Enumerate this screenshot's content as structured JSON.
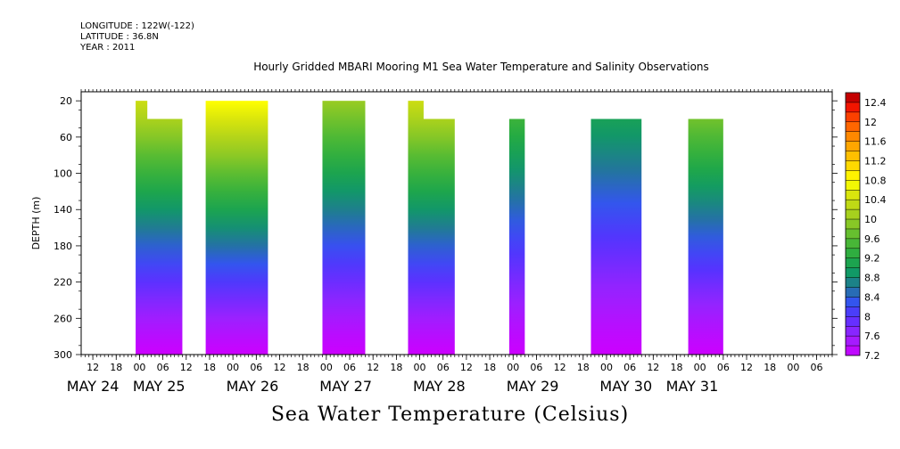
{
  "header": {
    "longitude": "LONGITUDE : 122W(-122)",
    "latitude": "LATITUDE : 36.8N",
    "year": "YEAR : 2011"
  },
  "title": "Hourly Gridded MBARI Mooring M1 Sea Water Temperature and Salinity Observations",
  "bottom_label": "Sea Water Temperature (Celsius)",
  "chart_data": {
    "type": "heatmap",
    "ylabel": "DEPTH (m)",
    "yticks": [
      20,
      60,
      100,
      140,
      180,
      220,
      260,
      300
    ],
    "ylim": [
      300,
      10
    ],
    "x_hour_ticks": [
      {
        "h": 12,
        "label": "12"
      },
      {
        "h": 18,
        "label": "18"
      },
      {
        "h": 24,
        "label": "00"
      },
      {
        "h": 30,
        "label": "06"
      },
      {
        "h": 36,
        "label": "12"
      },
      {
        "h": 42,
        "label": "18"
      },
      {
        "h": 48,
        "label": "00"
      },
      {
        "h": 54,
        "label": "06"
      },
      {
        "h": 60,
        "label": "12"
      },
      {
        "h": 66,
        "label": "18"
      },
      {
        "h": 72,
        "label": "00"
      },
      {
        "h": 78,
        "label": "06"
      },
      {
        "h": 84,
        "label": "12"
      },
      {
        "h": 90,
        "label": "18"
      },
      {
        "h": 96,
        "label": "00"
      },
      {
        "h": 102,
        "label": "06"
      },
      {
        "h": 108,
        "label": "12"
      },
      {
        "h": 114,
        "label": "18"
      },
      {
        "h": 120,
        "label": "00"
      },
      {
        "h": 126,
        "label": "06"
      },
      {
        "h": 132,
        "label": "12"
      },
      {
        "h": 138,
        "label": "18"
      },
      {
        "h": 144,
        "label": "00"
      },
      {
        "h": 150,
        "label": "06"
      },
      {
        "h": 156,
        "label": "12"
      },
      {
        "h": 162,
        "label": "18"
      },
      {
        "h": 168,
        "label": "00"
      },
      {
        "h": 174,
        "label": "06"
      },
      {
        "h": 180,
        "label": "12"
      },
      {
        "h": 186,
        "label": "18"
      },
      {
        "h": 192,
        "label": "00"
      },
      {
        "h": 198,
        "label": "06"
      }
    ],
    "date_labels": [
      {
        "h": 12,
        "label": "MAY 24"
      },
      {
        "h": 29,
        "label": "MAY 25"
      },
      {
        "h": 53,
        "label": "MAY 26"
      },
      {
        "h": 77,
        "label": "MAY 27"
      },
      {
        "h": 101,
        "label": "MAY 28"
      },
      {
        "h": 125,
        "label": "MAY 29"
      },
      {
        "h": 149,
        "label": "MAY 30"
      },
      {
        "h": 166,
        "label": "MAY 31"
      }
    ],
    "xlim": [
      9,
      202
    ],
    "data_blocks": [
      {
        "x_start": 23,
        "x_end": 35,
        "top_depth": 40,
        "early_top": {
          "x_end": 26,
          "depth": 20
        },
        "surface_temp": 10.4
      },
      {
        "x_start": 41,
        "x_end": 57,
        "top_depth": 20,
        "surface_temp": 10.8
      },
      {
        "x_start": 71,
        "x_end": 82,
        "top_depth": 20,
        "surface_temp": 10.0
      },
      {
        "x_start": 93,
        "x_end": 105,
        "top_depth": 40,
        "early_top": {
          "x_end": 97,
          "depth": 20
        },
        "surface_temp": 10.4
      },
      {
        "x_start": 119,
        "x_end": 123,
        "top_depth": 40,
        "surface_temp": 9.6
      },
      {
        "x_start": 140,
        "x_end": 153,
        "top_depth": 40,
        "surface_temp": 9.2
      },
      {
        "x_start": 165,
        "x_end": 174,
        "top_depth": 40,
        "surface_temp": 10.0
      }
    ],
    "colorbar": {
      "min": 7.2,
      "max": 12.6,
      "step": 0.2,
      "labels": [
        "12.4",
        "12",
        "11.6",
        "11.2",
        "10.8",
        "10.4",
        "10",
        "9.6",
        "9.2",
        "8.8",
        "8.4",
        "8",
        "7.6",
        "7.2"
      ],
      "colors": [
        {
          "v": 7.2,
          "c": "#cc00ff"
        },
        {
          "v": 7.6,
          "c": "#9922ff"
        },
        {
          "v": 8.0,
          "c": "#5533ff"
        },
        {
          "v": 8.3,
          "c": "#3355ee"
        },
        {
          "v": 8.6,
          "c": "#227799"
        },
        {
          "v": 8.9,
          "c": "#119966"
        },
        {
          "v": 9.2,
          "c": "#22aa44"
        },
        {
          "v": 9.6,
          "c": "#55bb33"
        },
        {
          "v": 10.0,
          "c": "#99cc22"
        },
        {
          "v": 10.4,
          "c": "#ccdd11"
        },
        {
          "v": 10.8,
          "c": "#ffff00"
        },
        {
          "v": 11.2,
          "c": "#ffcc00"
        },
        {
          "v": 11.6,
          "c": "#ff9900"
        },
        {
          "v": 12.0,
          "c": "#ff5500"
        },
        {
          "v": 12.4,
          "c": "#ee0000"
        },
        {
          "v": 12.6,
          "c": "#990000"
        }
      ]
    }
  }
}
